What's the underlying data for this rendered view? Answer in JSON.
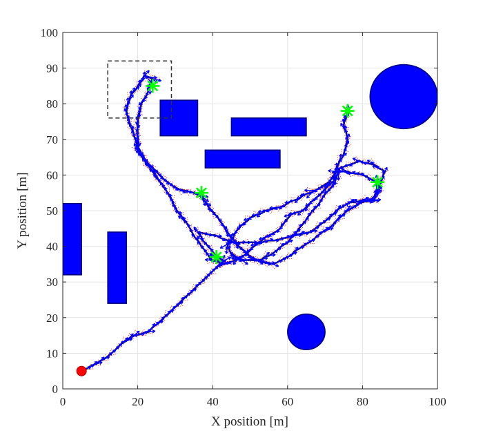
{
  "chart_data": {
    "type": "line",
    "title": "",
    "xlabel": "X position [m]",
    "ylabel": "Y position [m]",
    "xlim": [
      0,
      100
    ],
    "ylim": [
      0,
      100
    ],
    "xticks": [
      "0",
      "20",
      "40",
      "60",
      "80",
      "100"
    ],
    "yticks": [
      "0",
      "10",
      "20",
      "30",
      "40",
      "50",
      "60",
      "70",
      "80",
      "90",
      "100"
    ],
    "grid": true,
    "legend": "none",
    "colors": {
      "obstacle_fill": "#0000ff",
      "obstacle_edge": "#00007a",
      "trajectory": "#000000",
      "heading_arrows": "#0000ff",
      "candidate_paths": "#ff0000",
      "waypoint_marker": "#00ff00",
      "start_marker": "#ff0000",
      "highlight_box": "#333333"
    },
    "obstacles": [
      {
        "shape": "rect",
        "x1": 0,
        "y1": 32,
        "x2": 5,
        "y2": 52
      },
      {
        "shape": "rect",
        "x1": 12,
        "y1": 24,
        "x2": 17,
        "y2": 44
      },
      {
        "shape": "rect",
        "x1": 26,
        "y1": 71,
        "x2": 36,
        "y2": 81
      },
      {
        "shape": "rect",
        "x1": 45,
        "y1": 71,
        "x2": 65,
        "y2": 76
      },
      {
        "shape": "rect",
        "x1": 38,
        "y1": 62,
        "x2": 58,
        "y2": 67
      },
      {
        "shape": "circle",
        "cx": 91,
        "cy": 82,
        "r": 9
      },
      {
        "shape": "circle",
        "cx": 65,
        "cy": 16,
        "r": 5
      }
    ],
    "start": {
      "x": 5,
      "y": 5
    },
    "waypoints": [
      {
        "x": 24,
        "y": 85
      },
      {
        "x": 37,
        "y": 55
      },
      {
        "x": 41,
        "y": 37
      },
      {
        "x": 76,
        "y": 78
      },
      {
        "x": 84,
        "y": 58
      }
    ],
    "highlight_box": {
      "x1": 12,
      "y1": 76,
      "x2": 29,
      "y2": 92
    },
    "trajectory": [
      [
        5,
        5
      ],
      [
        9,
        7
      ],
      [
        13,
        10
      ],
      [
        16,
        13
      ],
      [
        19,
        15
      ],
      [
        23,
        16
      ],
      [
        26,
        19
      ],
      [
        29,
        22
      ],
      [
        32,
        25
      ],
      [
        35,
        28
      ],
      [
        38,
        31
      ],
      [
        41,
        34
      ],
      [
        43,
        36
      ],
      [
        41,
        37
      ],
      [
        38,
        41
      ],
      [
        36,
        44
      ],
      [
        41,
        43
      ],
      [
        46,
        41
      ],
      [
        52,
        41
      ],
      [
        58,
        42
      ],
      [
        62,
        43
      ],
      [
        66,
        44
      ],
      [
        70,
        47
      ],
      [
        73,
        50
      ],
      [
        76,
        52
      ],
      [
        80,
        53
      ],
      [
        83,
        53
      ],
      [
        84,
        56
      ],
      [
        86,
        61
      ],
      [
        83,
        63
      ],
      [
        79,
        64
      ],
      [
        74,
        62
      ],
      [
        73,
        59
      ],
      [
        70,
        56
      ],
      [
        67,
        53
      ],
      [
        64,
        50
      ],
      [
        61,
        49
      ],
      [
        58,
        45
      ],
      [
        55,
        43
      ],
      [
        52,
        41
      ],
      [
        49,
        38
      ],
      [
        46,
        36
      ],
      [
        43,
        35
      ],
      [
        40,
        36
      ],
      [
        37,
        40
      ],
      [
        34,
        45
      ],
      [
        32,
        48
      ],
      [
        30,
        51
      ],
      [
        28,
        55
      ],
      [
        26,
        58
      ],
      [
        24,
        61
      ],
      [
        22,
        64
      ],
      [
        20,
        67
      ],
      [
        19,
        71
      ],
      [
        18,
        74
      ],
      [
        17,
        78
      ],
      [
        18,
        82
      ],
      [
        20,
        85
      ],
      [
        22,
        88
      ],
      [
        24,
        87
      ],
      [
        23,
        84
      ],
      [
        21,
        80
      ],
      [
        20,
        76
      ],
      [
        20,
        72
      ],
      [
        20,
        68
      ],
      [
        22,
        64
      ],
      [
        25,
        61
      ],
      [
        28,
        58
      ],
      [
        31,
        56
      ],
      [
        35,
        55
      ],
      [
        37,
        54
      ],
      [
        39,
        51
      ],
      [
        42,
        47
      ],
      [
        44,
        44
      ],
      [
        46,
        41
      ],
      [
        49,
        38
      ],
      [
        52,
        36
      ],
      [
        56,
        35
      ],
      [
        60,
        37
      ],
      [
        64,
        40
      ],
      [
        68,
        43
      ],
      [
        71,
        45
      ],
      [
        74,
        48
      ],
      [
        76,
        50
      ],
      [
        79,
        52
      ],
      [
        82,
        53
      ],
      [
        84,
        55
      ],
      [
        84,
        58
      ],
      [
        80,
        60
      ],
      [
        76,
        61
      ],
      [
        73,
        61
      ],
      [
        71,
        58
      ],
      [
        68,
        56
      ],
      [
        66,
        55
      ],
      [
        62,
        53
      ],
      [
        58,
        51
      ],
      [
        54,
        50
      ],
      [
        50,
        48
      ],
      [
        47,
        45
      ],
      [
        45,
        42
      ],
      [
        44,
        40
      ],
      [
        45,
        38
      ],
      [
        48,
        36
      ],
      [
        52,
        36
      ],
      [
        56,
        38
      ],
      [
        60,
        41
      ],
      [
        63,
        45
      ],
      [
        66,
        49
      ],
      [
        69,
        53
      ],
      [
        72,
        57
      ],
      [
        73,
        62
      ],
      [
        75,
        66
      ],
      [
        76,
        70
      ],
      [
        75,
        74
      ],
      [
        76,
        78
      ]
    ]
  }
}
